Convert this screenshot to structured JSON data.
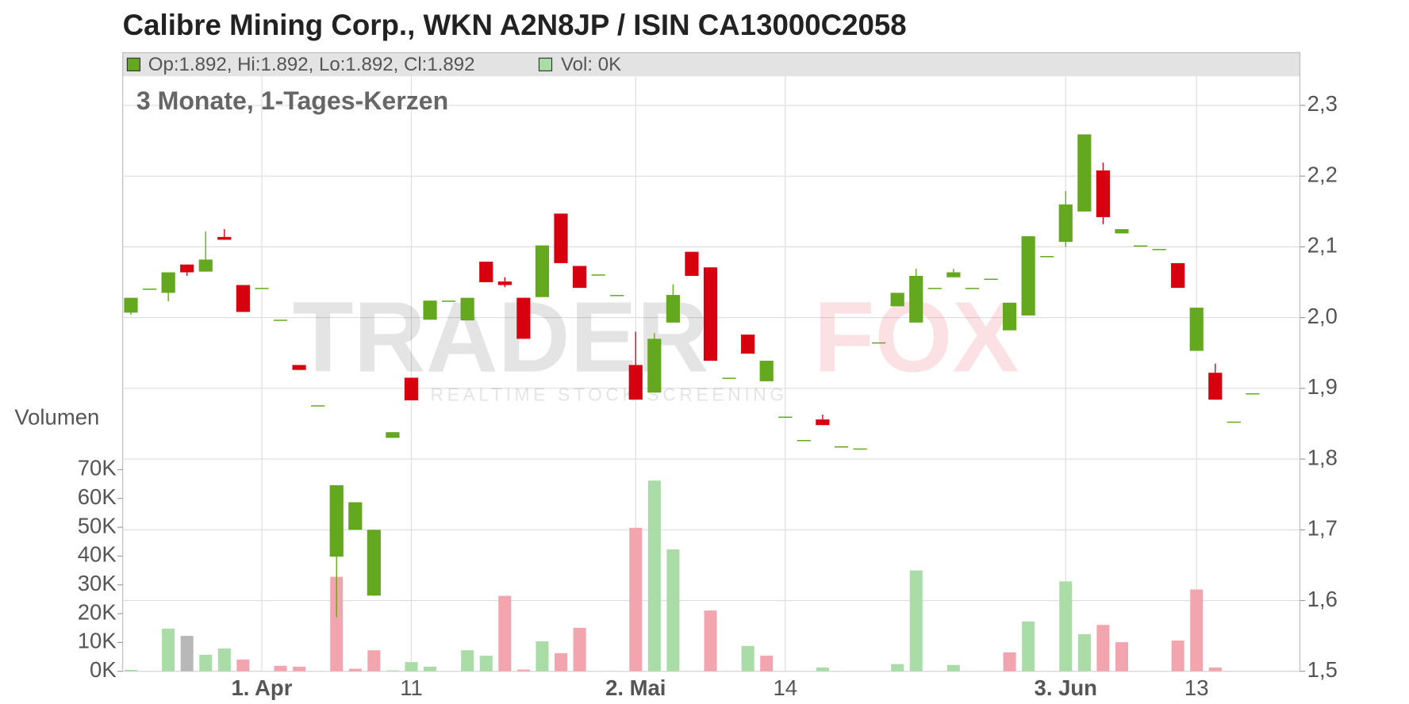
{
  "chart_data": {
    "type": "candlestick",
    "title": "Calibre Mining Corp., WKN A2N8JP / ISIN CA13000C2058",
    "subtitle": "3 Monate, 1-Tages-Kerzen",
    "info": "Op:1.892, Hi:1.892, Lo:1.892, Cl:1.892",
    "volume_info": "Vol: 0K",
    "volume_axis_label": "Volumen",
    "watermark": [
      "TRADER",
      "FOX"
    ],
    "watermark_tagline": "REALTIME STOCK SCREENING",
    "categories": [
      null,
      null,
      null,
      null,
      null,
      null,
      null,
      "1. Apr",
      null,
      null,
      null,
      null,
      null,
      null,
      null,
      "11",
      null,
      null,
      null,
      null,
      null,
      null,
      null,
      null,
      null,
      null,
      null,
      "2. Mai",
      null,
      null,
      null,
      null,
      null,
      null,
      null,
      "14",
      null,
      null,
      null,
      null,
      null,
      null,
      null,
      null,
      null,
      null,
      null,
      null,
      null,
      null,
      "3. Jun",
      null,
      null,
      null,
      null,
      null,
      null,
      "13",
      null,
      null,
      null
    ],
    "open": [
      2.007,
      2.041,
      2.035,
      2.075,
      2.065,
      2.114,
      2.046,
      2.042,
      1.997,
      1.933,
      1.876,
      1.662,
      1.7,
      1.607,
      1.83,
      1.915,
      1.997,
      2.024,
      1.996,
      2.079,
      2.051,
      2.028,
      2.029,
      2.147,
      2.073,
      2.061,
      2.032,
      1.933,
      1.894,
      1.993,
      2.093,
      2.071,
      1.915,
      1.976,
      1.91,
      1.86,
      1.827,
      1.856,
      1.818,
      1.815,
      1.965,
      2.016,
      1.993,
      2.042,
      2.057,
      2.042,
      2.055,
      1.982,
      2.003,
      2.087,
      2.107,
      2.15,
      2.208,
      2.119,
      2.102,
      2.097,
      2.077,
      1.953,
      1.922,
      1.853,
      1.893
    ],
    "high": [
      2.028,
      2.041,
      2.064,
      2.075,
      2.122,
      2.125,
      2.046,
      2.042,
      1.997,
      1.933,
      1.876,
      1.763,
      1.739,
      1.7,
      1.838,
      1.915,
      2.024,
      2.024,
      2.028,
      2.079,
      2.057,
      2.028,
      2.102,
      2.147,
      2.073,
      2.061,
      2.032,
      1.98,
      1.978,
      2.047,
      2.093,
      2.071,
      1.915,
      1.976,
      1.939,
      1.86,
      1.827,
      1.863,
      1.818,
      1.815,
      1.965,
      2.035,
      2.069,
      2.042,
      2.069,
      2.042,
      2.055,
      2.021,
      2.115,
      2.087,
      2.179,
      2.259,
      2.219,
      2.125,
      2.102,
      2.097,
      2.077,
      2.014,
      1.935,
      1.853,
      1.893
    ],
    "low": [
      2.004,
      2.041,
      2.023,
      2.059,
      2.065,
      2.11,
      2.008,
      2.042,
      1.997,
      1.926,
      1.876,
      1.576,
      1.7,
      1.607,
      1.83,
      1.883,
      1.997,
      2.024,
      1.996,
      2.05,
      2.043,
      1.97,
      2.029,
      2.077,
      2.042,
      2.061,
      2.032,
      1.884,
      1.894,
      1.993,
      2.059,
      1.939,
      1.915,
      1.949,
      1.91,
      1.86,
      1.827,
      1.848,
      1.818,
      1.815,
      1.965,
      2.016,
      1.993,
      2.042,
      2.057,
      2.042,
      2.055,
      1.982,
      2.003,
      2.087,
      2.1,
      2.15,
      2.132,
      2.119,
      2.102,
      2.097,
      2.042,
      1.953,
      1.884,
      1.853,
      1.893
    ],
    "close": [
      2.028,
      2.041,
      2.064,
      2.064,
      2.082,
      2.11,
      2.008,
      2.042,
      1.997,
      1.926,
      1.876,
      1.763,
      1.739,
      1.7,
      1.838,
      1.883,
      2.024,
      2.024,
      2.028,
      2.05,
      2.046,
      1.97,
      2.102,
      2.077,
      2.042,
      2.061,
      2.032,
      1.884,
      1.97,
      2.032,
      2.059,
      1.939,
      1.915,
      1.949,
      1.939,
      1.86,
      1.827,
      1.848,
      1.818,
      1.815,
      1.965,
      2.035,
      2.059,
      2.042,
      2.064,
      2.042,
      2.055,
      2.021,
      2.115,
      2.087,
      2.16,
      2.259,
      2.142,
      2.125,
      2.102,
      2.097,
      2.042,
      2.014,
      1.884,
      1.853,
      1.893
    ],
    "up_color": "#63a81e",
    "down_color": "#d7000f",
    "volume": [
      500,
      0,
      14800,
      12300,
      5700,
      7900,
      4100,
      0,
      1900,
      1600,
      0,
      32800,
      900,
      7300,
      300,
      3200,
      1600,
      0,
      7300,
      5400,
      26200,
      600,
      10400,
      6300,
      15100,
      0,
      0,
      49800,
      66200,
      42300,
      0,
      21100,
      0,
      8800,
      5400,
      0,
      0,
      1300,
      0,
      0,
      0,
      2500,
      35000,
      0,
      2200,
      0,
      0,
      6600,
      17300,
      0,
      31200,
      12900,
      16100,
      10100,
      0,
      0,
      10700,
      28400,
      1300,
      0,
      0
    ],
    "volume_colors": [
      "#a9dca6",
      "#a9dca6",
      "#a9dca6",
      "#b8b8b8",
      "#a9dca6",
      "#a9dca6",
      "#f2a5ae",
      "#a9dca6",
      "#f2a5ae",
      "#f2a5ae",
      "#a9dca6",
      "#f2a5ae",
      "#f2a5ae",
      "#f2a5ae",
      "#a9dca6",
      "#a9dca6",
      "#a9dca6",
      "#a9dca6",
      "#a9dca6",
      "#a9dca6",
      "#f2a5ae",
      "#f2a5ae",
      "#a9dca6",
      "#f2a5ae",
      "#f2a5ae",
      "#a9dca6",
      "#a9dca6",
      "#f2a5ae",
      "#a9dca6",
      "#a9dca6",
      "#a9dca6",
      "#f2a5ae",
      "#a9dca6",
      "#a9dca6",
      "#f2a5ae",
      "#a9dca6",
      "#a9dca6",
      "#a9dca6",
      "#a9dca6",
      "#a9dca6",
      "#a9dca6",
      "#a9dca6",
      "#a9dca6",
      "#a9dca6",
      "#a9dca6",
      "#a9dca6",
      "#a9dca6",
      "#f2a5ae",
      "#a9dca6",
      "#a9dca6",
      "#a9dca6",
      "#a9dca6",
      "#f2a5ae",
      "#f2a5ae",
      "#a9dca6",
      "#a9dca6",
      "#f2a5ae",
      "#f2a5ae",
      "#f2a5ae",
      "#a9dca6",
      "#a9dca6"
    ],
    "ylim": [
      1.5,
      2.3
    ],
    "yticks": [
      {
        "value": 1.5,
        "label": "1,5"
      },
      {
        "value": 1.6,
        "label": "1,6"
      },
      {
        "value": 1.7,
        "label": "1,7"
      },
      {
        "value": 1.8,
        "label": "1,8"
      },
      {
        "value": 1.9,
        "label": "1,9"
      },
      {
        "value": 2.0,
        "label": "2,0"
      },
      {
        "value": 2.1,
        "label": "2,1"
      },
      {
        "value": 2.2,
        "label": "2,2"
      },
      {
        "value": 2.3,
        "label": "2,3"
      }
    ],
    "y2lim": [
      0,
      70000
    ],
    "y2ticks": [
      {
        "value": 0,
        "label": "0K"
      },
      {
        "value": 10000,
        "label": "10K"
      },
      {
        "value": 20000,
        "label": "20K"
      },
      {
        "value": 30000,
        "label": "30K"
      },
      {
        "value": 40000,
        "label": "40K"
      },
      {
        "value": 50000,
        "label": "50K"
      },
      {
        "value": 60000,
        "label": "60K"
      },
      {
        "value": 70000,
        "label": "70K"
      }
    ],
    "grid": true
  }
}
